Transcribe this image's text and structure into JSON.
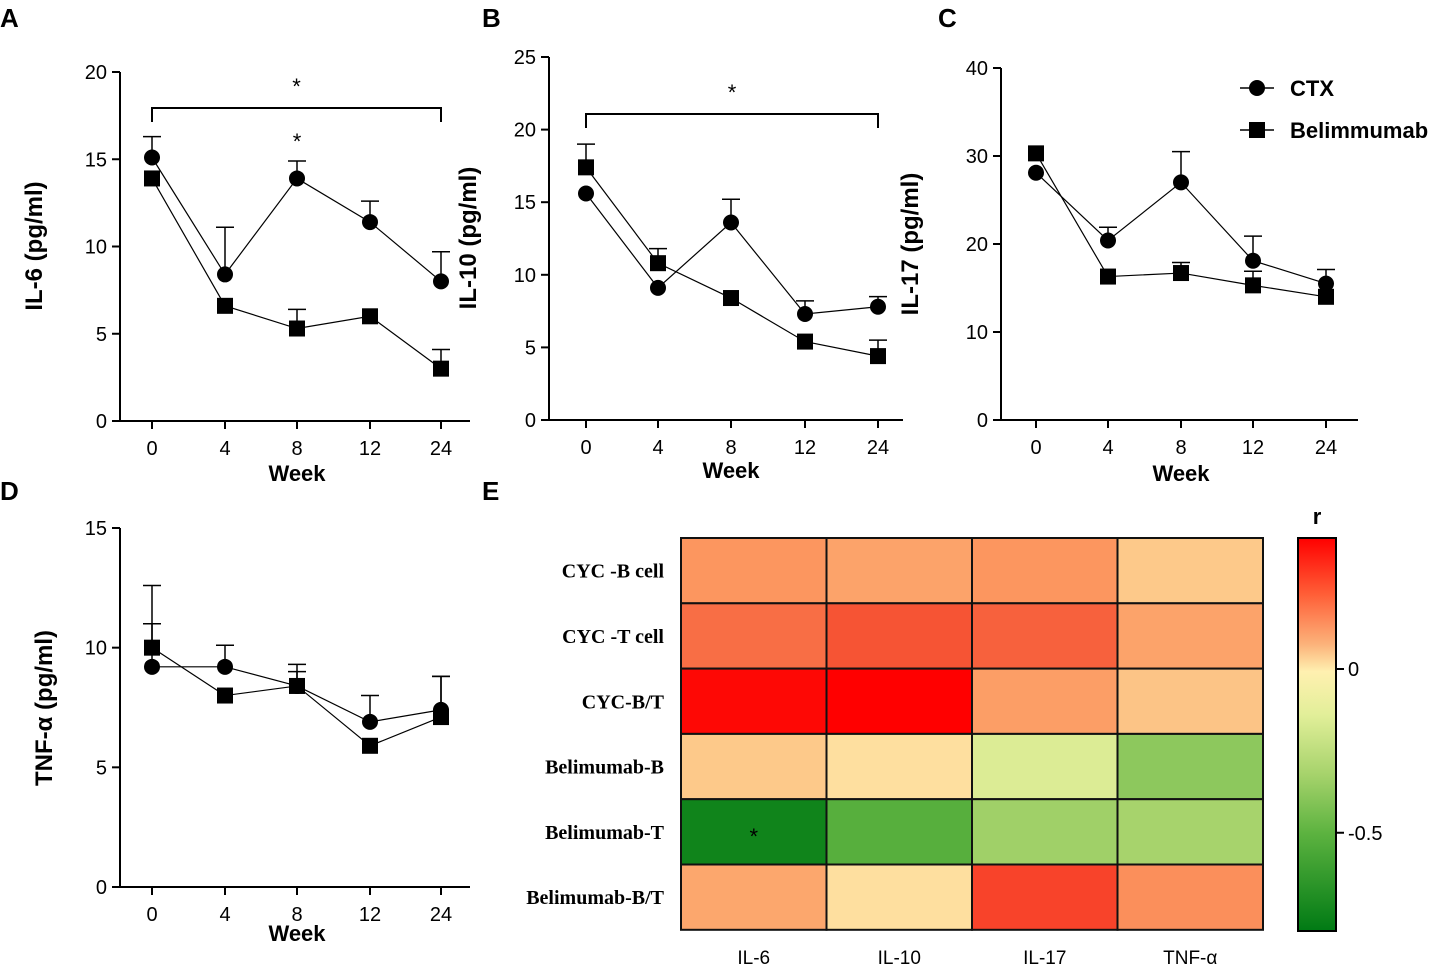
{
  "chart_data": [
    {
      "panel": "A",
      "type": "line",
      "title": "",
      "xlabel": "Week",
      "ylabel": "IL-6 (pg/ml)",
      "categories": [
        "0",
        "4",
        "8",
        "12",
        "24"
      ],
      "ylim": [
        0,
        20
      ],
      "yticks": [
        "0",
        "5",
        "10",
        "15",
        "20"
      ],
      "series": [
        {
          "name": "CTX",
          "marker": "circle",
          "values": [
            15.1,
            8.4,
            13.9,
            11.4,
            8.0
          ],
          "errors": [
            1.2,
            2.7,
            1.0,
            1.2,
            1.7
          ]
        },
        {
          "name": "Belimmumab",
          "marker": "square",
          "values": [
            13.9,
            6.6,
            5.3,
            6.0,
            3.0
          ],
          "errors": [
            0.0,
            0.0,
            1.1,
            0.0,
            1.1
          ]
        }
      ],
      "annotations": [
        {
          "text": "*",
          "type": "bracket",
          "from": "0",
          "to": "24"
        },
        {
          "text": "*",
          "type": "point",
          "at": "8"
        }
      ]
    },
    {
      "panel": "B",
      "type": "line",
      "title": "",
      "xlabel": "Week",
      "ylabel": "IL-10 (pg/ml)",
      "categories": [
        "0",
        "4",
        "8",
        "12",
        "24"
      ],
      "ylim": [
        0,
        25
      ],
      "yticks": [
        "0",
        "5",
        "10",
        "15",
        "20",
        "25"
      ],
      "series": [
        {
          "name": "CTX",
          "marker": "circle",
          "values": [
            15.6,
            9.1,
            13.6,
            7.3,
            7.8
          ],
          "errors": [
            0.0,
            0.0,
            1.6,
            0.9,
            0.7
          ]
        },
        {
          "name": "Belimmumab",
          "marker": "square",
          "values": [
            17.4,
            10.8,
            8.4,
            5.4,
            4.4
          ],
          "errors": [
            1.6,
            1.0,
            0.0,
            0.0,
            1.1
          ]
        }
      ],
      "annotations": [
        {
          "text": "*",
          "type": "bracket",
          "from": "0",
          "to": "24"
        }
      ]
    },
    {
      "panel": "C",
      "type": "line",
      "title": "",
      "xlabel": "Week",
      "ylabel": "IL-17 (pg/ml)",
      "categories": [
        "0",
        "4",
        "8",
        "12",
        "24"
      ],
      "ylim": [
        0,
        40
      ],
      "yticks": [
        "0",
        "10",
        "20",
        "30",
        "40"
      ],
      "legend": {
        "position": "top-right",
        "entries": [
          "CTX",
          "Belimmumab"
        ]
      },
      "series": [
        {
          "name": "CTX",
          "marker": "circle",
          "values": [
            28.1,
            20.4,
            27.0,
            18.1,
            15.5
          ],
          "errors": [
            0.0,
            1.5,
            3.5,
            2.8,
            1.6
          ]
        },
        {
          "name": "Belimmumab",
          "marker": "square",
          "values": [
            30.3,
            16.3,
            16.7,
            15.3,
            14.0
          ],
          "errors": [
            0.0,
            0.0,
            1.2,
            1.6,
            0.0
          ]
        }
      ]
    },
    {
      "panel": "D",
      "type": "line",
      "title": "",
      "xlabel": "Week",
      "ylabel": "TNF-α (pg/ml)",
      "categories": [
        "0",
        "4",
        "8",
        "12",
        "24"
      ],
      "ylim": [
        0,
        15
      ],
      "yticks": [
        "0",
        "5",
        "10",
        "15"
      ],
      "series": [
        {
          "name": "CTX",
          "marker": "circle",
          "values": [
            9.2,
            9.2,
            8.4,
            6.9,
            7.4
          ],
          "errors": [
            1.8,
            0.9,
            0.9,
            1.1,
            1.4
          ]
        },
        {
          "name": "Belimmumab",
          "marker": "square",
          "values": [
            10.0,
            8.0,
            8.4,
            5.9,
            7.1
          ],
          "errors": [
            2.6,
            0.0,
            0.6,
            0.0,
            1.7
          ]
        }
      ]
    },
    {
      "panel": "E",
      "type": "heatmap",
      "title": "",
      "colorbar_title": "r",
      "colorbar_ticks": [
        {
          "value": 0,
          "label": "0"
        },
        {
          "value": -0.5,
          "label": "-0.5"
        }
      ],
      "colorbar_range": [
        -0.8,
        0.4
      ],
      "rows": [
        "CYC -B cell",
        "CYC -T cell",
        "CYC-B/T",
        "Belimumab-B",
        "Belimumab-T",
        "Belimumab-B/T"
      ],
      "columns": [
        "IL-6",
        "IL-10",
        "IL-17",
        "TNF-α"
      ],
      "values": [
        [
          0.2,
          0.17,
          0.2,
          0.08
        ],
        [
          0.26,
          0.3,
          0.28,
          0.17
        ],
        [
          0.39,
          0.4,
          0.18,
          0.09
        ],
        [
          0.08,
          0.03,
          -0.12,
          -0.37
        ],
        [
          -0.75,
          -0.52,
          -0.32,
          -0.3
        ],
        [
          0.16,
          0.03,
          0.32,
          0.21
        ]
      ],
      "significance": [
        {
          "row": 4,
          "col": 0,
          "text": "*"
        }
      ]
    }
  ]
}
